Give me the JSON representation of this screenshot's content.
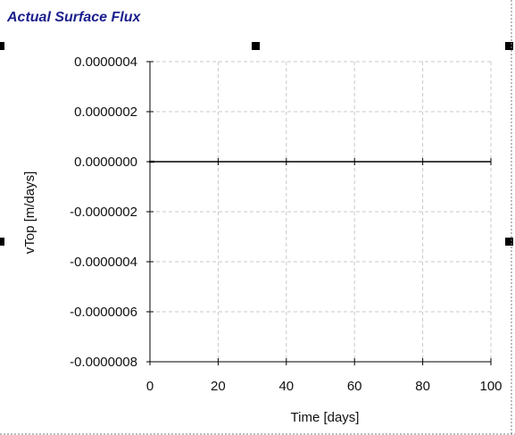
{
  "chart_data": {
    "type": "line",
    "title": "Actual Surface Flux",
    "xlabel": "Time [days]",
    "ylabel": "vTop [m/days]",
    "xlim": [
      0,
      100
    ],
    "ylim": [
      -8e-07,
      4e-07
    ],
    "x_ticks": [
      0,
      20,
      40,
      60,
      80,
      100
    ],
    "x_tick_labels": [
      "0",
      "20",
      "40",
      "60",
      "80",
      "100"
    ],
    "y_ticks": [
      4e-07,
      2e-07,
      0,
      -2e-07,
      -4e-07,
      -6e-07,
      -8e-07
    ],
    "y_tick_labels": [
      "0.0000004",
      "0.0000002",
      "0.0000000",
      "-0.0000002",
      "-0.0000004",
      "-0.0000006",
      "-0.0000008"
    ],
    "grid": true,
    "series": [
      {
        "x": [
          0,
          0.5,
          1,
          2,
          5,
          10,
          20,
          30,
          40,
          50,
          60,
          70,
          80,
          90,
          100
        ],
        "y": [
          0,
          0,
          0,
          0,
          0,
          0,
          0,
          0,
          0,
          0,
          0,
          0,
          0,
          0,
          0
        ],
        "color": "#000000"
      }
    ]
  }
}
